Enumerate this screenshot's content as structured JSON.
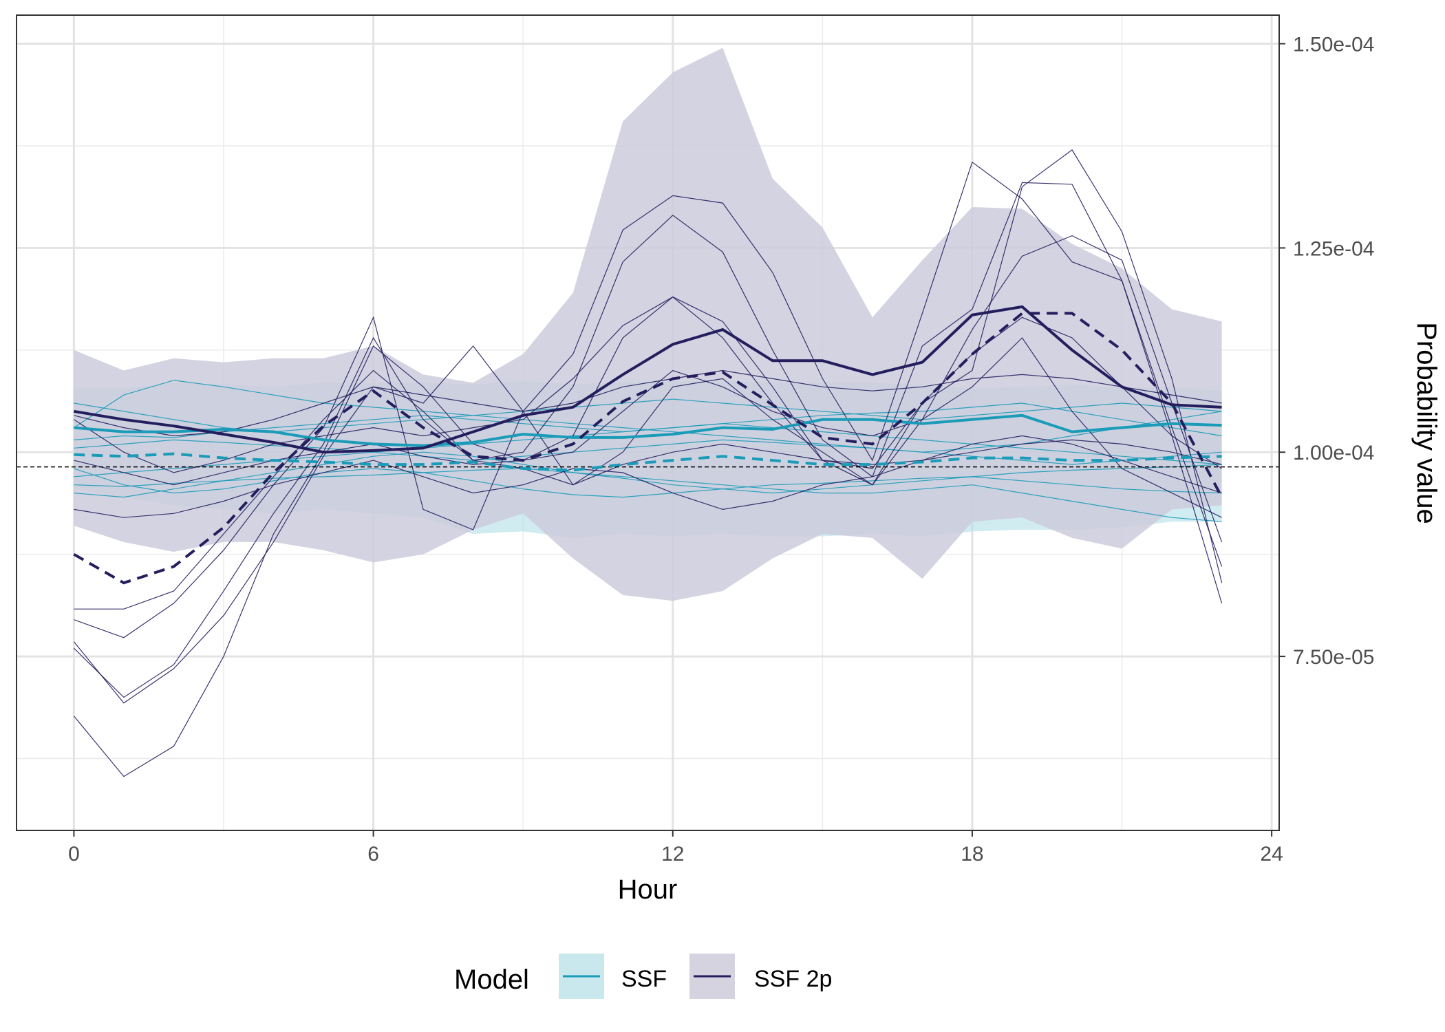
{
  "chart_data": {
    "type": "line",
    "xlabel": "Hour",
    "ylabel": "Probability value",
    "xlim": [
      -1.15,
      24.15
    ],
    "ylim": [
      5.37e-05,
      0.0001535
    ],
    "x_ticks": [
      0,
      6,
      12,
      18,
      24
    ],
    "x_minor": [
      3,
      9,
      15,
      21
    ],
    "y_ticks": [
      7.5e-05,
      0.0001,
      0.000125,
      0.00015
    ],
    "y_tick_labels": [
      "7.50e-05",
      "1.00e-04",
      "1.25e-04",
      "1.50e-04"
    ],
    "y_minor": [
      6.25e-05,
      8.75e-05,
      0.0001125,
      0.0001375
    ],
    "y_axis_position": "right",
    "reference_line": 9.82e-05,
    "legend": {
      "title": "Model",
      "position": "bottom",
      "entries": [
        {
          "label": "SSF",
          "color": "#1a9bb8",
          "fill": "#c8e8ee"
        },
        {
          "label": "SSF 2p",
          "color": "#241e5e",
          "fill": "#d5d3e0"
        }
      ]
    },
    "x": [
      0,
      1,
      2,
      3,
      4,
      5,
      6,
      7,
      8,
      9,
      10,
      11,
      12,
      13,
      14,
      15,
      16,
      17,
      18,
      19,
      20,
      21,
      22,
      23
    ],
    "series": [
      {
        "name": "SSF",
        "color": "#1a9bb8",
        "band_fill": "#a9dce6",
        "band_upper": [
          0.0001078,
          0.0001078,
          0.0001085,
          0.0001083,
          0.000108,
          0.0001085,
          0.0001085,
          0.0001085,
          0.0001083,
          0.0001087,
          0.0001083,
          0.0001085,
          0.0001087,
          0.0001087,
          0.0001085,
          0.0001085,
          0.0001085,
          0.0001082,
          0.0001078,
          0.000108,
          0.0001083,
          0.0001078,
          0.000108,
          0.0001075
        ],
        "band_lower": [
          9.55e-05,
          9.45e-05,
          9.35e-05,
          9.3e-05,
          9.25e-05,
          9.3e-05,
          9.25e-05,
          9.2e-05,
          9e-05,
          9.03e-05,
          8.95e-05,
          9e-05,
          8.97e-05,
          9e-05,
          8.97e-05,
          8.97e-05,
          9e-05,
          8.97e-05,
          9.03e-05,
          9.05e-05,
          9.05e-05,
          9.08e-05,
          9.15e-05,
          9.15e-05
        ],
        "mean": [
          0.000103,
          0.0001025,
          0.0001025,
          0.0001028,
          0.0001025,
          0.0001015,
          0.000101,
          0.0001008,
          0.0001012,
          0.0001022,
          0.0001018,
          0.0001018,
          0.0001022,
          0.000103,
          0.0001028,
          0.000104,
          0.000104,
          0.0001035,
          0.000104,
          0.0001045,
          0.0001025,
          0.000103,
          0.0001035,
          0.0001033
        ],
        "median": [
          9.97e-05,
          9.95e-05,
          9.98e-05,
          9.93e-05,
          9.9e-05,
          9.88e-05,
          9.85e-05,
          9.85e-05,
          9.88e-05,
          9.8e-05,
          9.78e-05,
          9.85e-05,
          9.9e-05,
          9.95e-05,
          9.9e-05,
          9.85e-05,
          9.85e-05,
          9.88e-05,
          9.93e-05,
          9.93e-05,
          9.9e-05,
          9.9e-05,
          9.93e-05,
          9.95e-05
        ],
        "individuals": [
          [
            0.000103,
            0.000107,
            0.0001088,
            0.000108,
            0.000107,
            0.000106,
            0.0001055,
            0.000105,
            0.0001045,
            0.000104,
            0.0001035,
            0.000103,
            0.0001025,
            0.000102,
            0.0001015,
            0.000101,
            0.0001005,
            0.0001,
            0.0001005,
            0.000101,
            0.000102,
            0.000103,
            0.000104,
            0.000105
          ],
          [
            0.000106,
            0.000105,
            0.000104,
            0.000103,
            0.0001025,
            0.000103,
            0.0001035,
            0.000104,
            0.0001045,
            0.000105,
            0.0001055,
            0.000106,
            0.0001065,
            0.000106,
            0.0001055,
            0.000105,
            0.0001045,
            0.000104,
            0.0001045,
            0.000105,
            0.0001055,
            0.000106,
            0.0001055,
            0.000105
          ],
          [
            9.8e-05,
            9.6e-05,
            9.5e-05,
            9.55e-05,
            9.65e-05,
            9.75e-05,
            9.8e-05,
            9.75e-05,
            9.65e-05,
            9.55e-05,
            9.48e-05,
            9.45e-05,
            9.5e-05,
            9.55e-05,
            9.6e-05,
            9.62e-05,
            9.65e-05,
            9.68e-05,
            9.7e-05,
            9.65e-05,
            9.6e-05,
            9.55e-05,
            9.52e-05,
            9.5e-05
          ],
          [
            9.5e-05,
            9.45e-05,
            9.55e-05,
            9.65e-05,
            9.75e-05,
            9.85e-05,
            9.95e-05,
            0.0001,
            9.95e-05,
            9.85e-05,
            9.75e-05,
            9.7e-05,
            9.65e-05,
            9.6e-05,
            9.55e-05,
            9.5e-05,
            9.5e-05,
            9.55e-05,
            9.6e-05,
            9.5e-05,
            9.4e-05,
            9.3e-05,
            9.2e-05,
            9.15e-05
          ],
          [
            0.0001005,
            0.000101,
            0.0001015,
            0.0001012,
            0.0001008,
            0.0001005,
            0.0001,
            9.95e-05,
            9.9e-05,
            9.95e-05,
            0.0001,
            0.0001005,
            0.000101,
            0.0001015,
            0.0001012,
            0.0001008,
            0.0001005,
            0.0001,
            9.95e-05,
            9.9e-05,
            9.85e-05,
            9.9e-05,
            9.95e-05,
            0.0001
          ],
          [
            9.7e-05,
            9.75e-05,
            9.8e-05,
            9.85e-05,
            9.9e-05,
            9.95e-05,
            0.0001,
            0.0001005,
            0.000101,
            0.0001015,
            0.000102,
            0.0001025,
            0.000103,
            0.0001035,
            0.000103,
            0.0001025,
            0.000102,
            0.0001015,
            0.000101,
            0.0001005,
            0.0001,
            9.95e-05,
            9.9e-05,
            9.85e-05
          ],
          [
            0.0001015,
            0.000102,
            0.0001018,
            0.0001025,
            0.000103,
            0.0001035,
            0.000104,
            0.0001045,
            0.000104,
            0.0001035,
            0.000103,
            0.0001025,
            0.000103,
            0.0001035,
            0.000104,
            0.0001045,
            0.0001048,
            0.000105,
            0.0001055,
            0.000106,
            0.000105,
            0.000104,
            0.000103,
            0.000102
          ],
          [
            9.6e-05,
            9.58e-05,
            9.62e-05,
            9.65e-05,
            9.68e-05,
            9.7e-05,
            9.72e-05,
            9.75e-05,
            9.78e-05,
            9.8e-05,
            9.75e-05,
            9.68e-05,
            9.6e-05,
            9.55e-05,
            9.5e-05,
            9.55e-05,
            9.6e-05,
            9.65e-05,
            9.7e-05,
            9.75e-05,
            9.78e-05,
            9.8e-05,
            9.82e-05,
            9.85e-05
          ]
        ]
      },
      {
        "name": "SSF 2p",
        "color": "#241e5e",
        "band_fill": "#cdcbdc",
        "band_upper": [
          0.0001125,
          0.00011,
          0.0001115,
          0.000111,
          0.0001115,
          0.0001115,
          0.000113,
          0.0001095,
          0.0001085,
          0.000112,
          0.0001195,
          0.0001405,
          0.0001465,
          0.0001495,
          0.0001335,
          0.0001275,
          0.0001165,
          0.0001235,
          0.00013,
          0.0001298,
          0.0001255,
          0.0001225,
          0.0001175,
          0.000116
        ],
        "band_lower": [
          9.1e-05,
          8.9e-05,
          8.78e-05,
          8.9e-05,
          8.9e-05,
          8.8e-05,
          8.65e-05,
          8.75e-05,
          9.05e-05,
          9.25e-05,
          8.7e-05,
          8.25e-05,
          8.18e-05,
          8.3e-05,
          8.7e-05,
          9e-05,
          8.95e-05,
          8.45e-05,
          9.15e-05,
          9.2e-05,
          8.95e-05,
          8.82e-05,
          9.3e-05,
          9.35e-05
        ],
        "mean": [
          0.000105,
          0.000104,
          0.0001032,
          0.0001022,
          0.0001012,
          0.0001,
          0.0001002,
          0.0001005,
          0.0001025,
          0.0001045,
          0.0001055,
          0.0001095,
          0.0001132,
          0.000115,
          0.0001112,
          0.0001112,
          0.0001095,
          0.000111,
          0.0001168,
          0.0001178,
          0.0001125,
          0.000108,
          0.0001058,
          0.0001055
        ],
        "median": [
          8.75e-05,
          8.4e-05,
          8.6e-05,
          9.08e-05,
          9.75e-05,
          0.0001032,
          0.0001075,
          0.000103,
          9.95e-05,
          9.9e-05,
          0.000101,
          0.0001062,
          0.000109,
          0.0001098,
          0.0001058,
          0.0001018,
          0.000101,
          0.000106,
          0.000112,
          0.000117,
          0.000117,
          0.0001125,
          0.000106,
          9.45e-05
        ],
        "individuals": [
          [
            6.77e-05,
            6.03e-05,
            6.4e-05,
            7.5e-05,
            9e-05,
            0.0001,
            0.000113,
            0.000108,
            0.000101,
            9.9e-05,
            0.000102,
            0.000114,
            0.000119,
            0.000114,
            0.000106,
            9.9e-05,
            9.6e-05,
            0.000104,
            0.000115,
            0.000124,
            0.0001265,
            0.0001235,
            0.000106,
            8.9e-05
          ],
          [
            7.6e-05,
            7e-05,
            7.4e-05,
            8.3e-05,
            9.25e-05,
            0.000101,
            0.000114,
            0.000104,
            9.9e-05,
            9.8e-05,
            9.6e-05,
            9.85e-05,
            0.0001,
            0.000101,
            0.0001,
            9.9e-05,
            9.85e-05,
            9.9e-05,
            0.0001,
            0.000101,
            0.0001015,
            0.000101,
            0.0001,
            9.85e-05
          ],
          [
            7.68e-05,
            6.93e-05,
            7.35e-05,
            8e-05,
            8.9e-05,
            9.95e-05,
            0.000108,
            0.000106,
            0.000113,
            0.000105,
            9.6e-05,
            0.0001,
            0.000108,
            0.000109,
            0.000104,
            0.0001,
            9.6e-05,
            0.000106,
            0.00011,
            0.0001325,
            0.000137,
            0.000127,
            0.000109,
            8.4e-05
          ],
          [
            7.95e-05,
            7.73e-05,
            8.15e-05,
            8.8e-05,
            9.6e-05,
            0.000103,
            0.0001165,
            9.3e-05,
            9.05e-05,
            0.000105,
            0.000112,
            0.0001272,
            0.0001314,
            0.0001305,
            0.000122,
            0.000109,
            9.9e-05,
            0.000117,
            0.0001355,
            0.000131,
            0.0001233,
            0.000121,
            0.000102,
            8.15e-05
          ],
          [
            8.08e-05,
            8.08e-05,
            8.3e-05,
            9e-05,
            9.7e-05,
            0.000104,
            0.00011,
            0.000105,
            9.9e-05,
            0.0001,
            0.000108,
            0.0001233,
            0.000129,
            0.0001245,
            0.0001125,
            0.0001015,
            9.7e-05,
            0.000113,
            0.0001175,
            0.000133,
            0.0001328,
            0.000121,
            0.000103,
            8.6e-05
          ],
          [
            0.000104,
            0.0001,
            9.75e-05,
            9.9e-05,
            0.000101,
            0.000102,
            0.000103,
            0.000102,
            0.000103,
            0.000104,
            0.000109,
            0.0001155,
            0.000119,
            0.000116,
            0.000108,
            9.9e-05,
            9.8e-05,
            0.000106,
            0.000112,
            0.0001165,
            0.000114,
            0.000108,
            0.000102,
            9.8e-05
          ],
          [
            9.9e-05,
            9.75e-05,
            9.6e-05,
            9.75e-05,
            9.9e-05,
            0.0001,
            0.000101,
            9.95e-05,
            9.85e-05,
            9.9e-05,
            0.0001,
            0.000105,
            0.00011,
            0.000108,
            0.000105,
            0.000103,
            0.000102,
            0.000104,
            0.000108,
            0.000114,
            0.000105,
            9.8e-05,
            9.5e-05,
            9.2e-05
          ],
          [
            9.3e-05,
            9.2e-05,
            9.25e-05,
            9.4e-05,
            9.6e-05,
            9.75e-05,
            9.9e-05,
            9.7e-05,
            9.5e-05,
            9.6e-05,
            9.8e-05,
            9.75e-05,
            9.5e-05,
            9.3e-05,
            9.4e-05,
            9.6e-05,
            9.7e-05,
            9.9e-05,
            0.000101,
            0.000102,
            0.000101,
            9.9e-05,
            9.7e-05,
            9.5e-05
          ],
          [
            0.0001045,
            0.000103,
            0.000102,
            0.0001025,
            0.000104,
            0.000106,
            0.000108,
            0.000107,
            0.000106,
            0.000105,
            0.000106,
            0.000108,
            0.000109,
            0.00011,
            0.000109,
            0.000108,
            0.0001075,
            0.000108,
            0.000109,
            0.0001095,
            0.000109,
            0.000108,
            0.000107,
            0.000106
          ]
        ]
      }
    ]
  }
}
